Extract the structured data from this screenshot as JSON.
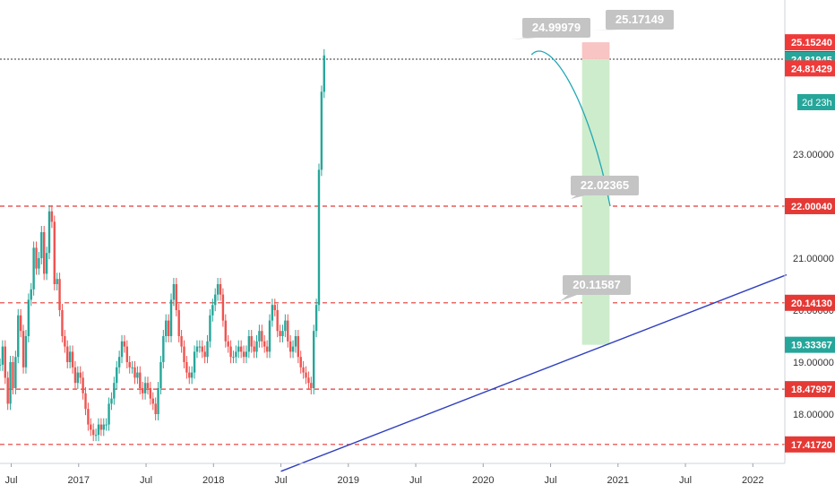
{
  "chart_data": {
    "type": "candlestick",
    "title": "",
    "xlabel": "",
    "ylabel": "",
    "ylim": [
      17.2,
      25.6
    ],
    "x_ticks": [
      "Jul",
      "2017",
      "Jul",
      "2018",
      "Jul",
      "2019",
      "Jul",
      "2020",
      "Jul",
      "2021",
      "Jul",
      "2022"
    ],
    "y_ticks": [
      "23.00000",
      "21.00000",
      "20.00000",
      "19.00000",
      "18.00000"
    ],
    "y_tick_values": [
      23.0,
      21.0,
      20.0,
      19.0,
      18.0
    ],
    "horizontal_levels": [
      {
        "label": "25.15240",
        "value": 25.1524,
        "style": "label-only",
        "color": "#ef3a3a"
      },
      {
        "label": "24.82808",
        "value": 24.82808,
        "style": "dotted",
        "color": "#333333"
      },
      {
        "label": "24.81945",
        "value": 24.81945,
        "style": "label-only",
        "color": "#26a69a"
      },
      {
        "label": "24.81429",
        "value": 24.65,
        "style": "label-only",
        "color": "#ef3a3a"
      },
      {
        "label": "22.00040",
        "value": 22.0004,
        "style": "dashed",
        "color": "#e53935"
      },
      {
        "label": "20.14130",
        "value": 20.1413,
        "style": "dashed",
        "color": "#e53935"
      },
      {
        "label": "19.33367",
        "value": 19.33367,
        "style": "label-only",
        "color": "#26a69a"
      },
      {
        "label": "18.47997",
        "value": 18.47997,
        "style": "dashed",
        "color": "#e53935"
      },
      {
        "label": "17.41720",
        "value": 17.4172,
        "style": "dashed",
        "color": "#e53935"
      }
    ],
    "countdown_label": "2d 23h",
    "callouts": [
      {
        "label": "24.99979",
        "value": 24.99979
      },
      {
        "label": "25.17149",
        "value": 25.17149
      },
      {
        "label": "22.02365",
        "value": 22.02365
      },
      {
        "label": "20.11587",
        "value": 20.11587
      }
    ],
    "position_box": {
      "entry": 24.82808,
      "stop": 25.1524,
      "target": 19.33367
    },
    "trendline": {
      "from": [
        "2018-07",
        16.9
      ],
      "to": [
        "2022-04",
        20.68
      ],
      "color": "#2f3fbf"
    },
    "colors": {
      "up": "#26a69a",
      "down": "#ef5350",
      "profit": "#cdeccc",
      "loss": "#f9c4c4",
      "path": "#22a8b5"
    },
    "candles": {
      "start": "2016-06",
      "interval": "week",
      "values": [
        18.95,
        19.3,
        18.7,
        18.2,
        19.0,
        18.5,
        19.1,
        19.9,
        19.6,
        18.9,
        19.5,
        20.2,
        20.4,
        21.2,
        20.8,
        21.0,
        21.5,
        20.7,
        21.1,
        21.9,
        21.7,
        20.5,
        20.6,
        20.0,
        19.5,
        19.3,
        19.0,
        19.2,
        18.9,
        18.6,
        18.8,
        18.7,
        18.4,
        18.1,
        17.8,
        17.7,
        17.6,
        17.6,
        17.8,
        17.7,
        17.8,
        17.8,
        18.2,
        18.3,
        18.6,
        18.9,
        19.1,
        19.4,
        19.3,
        19.0,
        18.9,
        18.9,
        18.7,
        18.8,
        18.5,
        18.4,
        18.6,
        18.5,
        18.3,
        18.2,
        18.0,
        18.5,
        19.0,
        19.5,
        19.8,
        19.5,
        20.2,
        20.5,
        20.0,
        19.5,
        19.3,
        19.0,
        18.8,
        18.7,
        18.8,
        19.2,
        19.3,
        19.3,
        19.2,
        19.1,
        19.4,
        19.9,
        20.1,
        20.3,
        20.5,
        20.3,
        19.8,
        19.4,
        19.3,
        19.1,
        19.1,
        19.2,
        19.3,
        19.2,
        19.1,
        19.2,
        19.5,
        19.3,
        19.2,
        19.4,
        19.6,
        19.4,
        19.3,
        19.2,
        19.8,
        20.1,
        20.0,
        19.6,
        19.5,
        19.6,
        19.8,
        19.4,
        19.2,
        19.3,
        19.5,
        19.1,
        18.9,
        18.8,
        18.7,
        18.6,
        18.5,
        19.6,
        20.1,
        22.7,
        24.2,
        24.9
      ]
    }
  }
}
